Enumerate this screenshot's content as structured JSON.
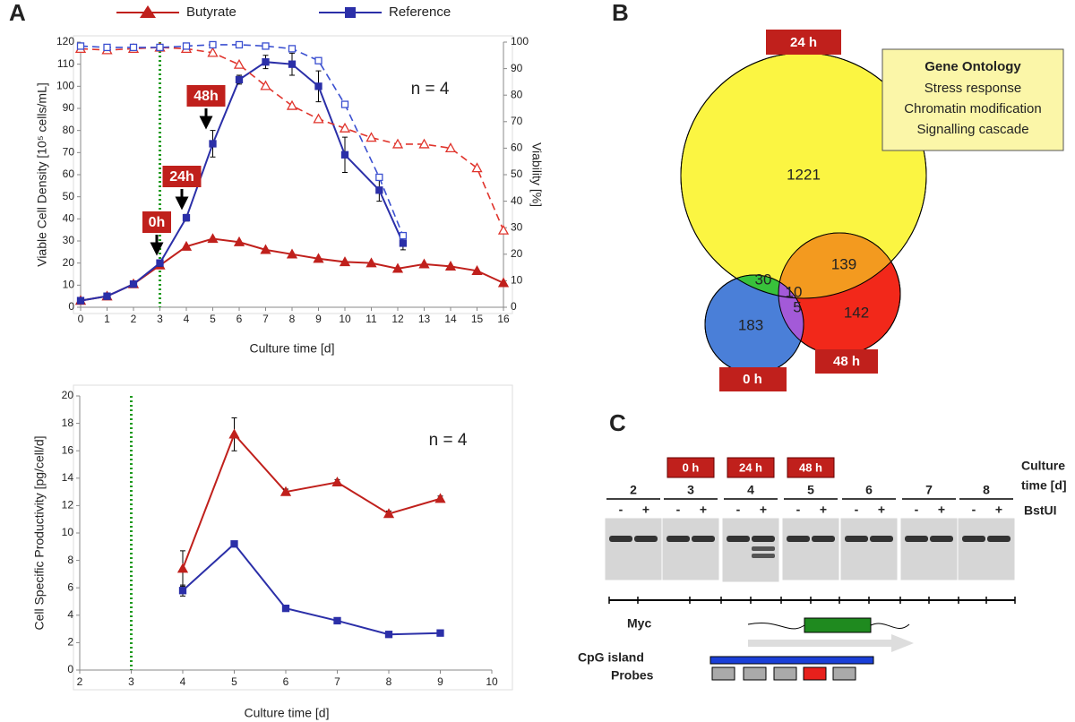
{
  "panels": [
    "A",
    "B",
    "C"
  ],
  "chart_data": [
    {
      "type": "line",
      "xlabel": "Culture time [d]",
      "ylabel": "Viable Cell Density [10⁵ cells/mL]",
      "y2label": "Viability [%]",
      "xlim": [
        0,
        16
      ],
      "ylim": [
        0,
        120
      ],
      "y2lim": [
        0,
        100
      ],
      "xticks": [
        0,
        1,
        2,
        3,
        4,
        5,
        6,
        7,
        8,
        9,
        10,
        11,
        12,
        13,
        14,
        15,
        16
      ],
      "yticks": [
        0,
        10,
        20,
        30,
        40,
        50,
        60,
        70,
        80,
        90,
        100,
        110,
        120
      ],
      "y2ticks": [
        0,
        10,
        20,
        30,
        40,
        50,
        60,
        70,
        80,
        90,
        100
      ],
      "vline": 3,
      "annotations": [
        "0h",
        "24h",
        "48h",
        "n = 4"
      ],
      "series": [
        {
          "name": "Butyrate",
          "color": "#c0201c",
          "marker": "triangle",
          "filled": true,
          "dashed": false,
          "axis": "y",
          "x": [
            0,
            1,
            2,
            3,
            4,
            5,
            6,
            7,
            8,
            9,
            10,
            11,
            12,
            13,
            14,
            15,
            16
          ],
          "values": [
            3,
            5,
            10.5,
            19,
            27.5,
            31,
            29.5,
            26,
            24,
            22,
            20.5,
            20,
            17.5,
            19.5,
            18.5,
            16.5,
            11
          ]
        },
        {
          "name": "Reference",
          "color": "#2b2fa8",
          "marker": "square",
          "filled": true,
          "dashed": false,
          "axis": "y",
          "x": [
            0,
            1,
            2,
            3,
            4,
            5,
            6,
            7,
            8,
            9,
            10,
            11.3,
            12.2
          ],
          "values": [
            3,
            5,
            10.5,
            20,
            40.5,
            74,
            103,
            111,
            110,
            100,
            69,
            53,
            29
          ],
          "errors": [
            0.5,
            0.5,
            0.8,
            1.5,
            1.5,
            6,
            2,
            3,
            5,
            7,
            8,
            5,
            3
          ]
        },
        {
          "name": "Butyrate",
          "color": "#e0342c",
          "marker": "triangle",
          "filled": false,
          "dashed": true,
          "axis": "y2",
          "x": [
            0,
            1,
            2,
            3,
            4,
            5,
            6,
            7,
            8,
            9,
            10,
            11,
            12,
            13,
            14,
            15,
            16
          ],
          "values": [
            97.5,
            97,
            97.5,
            98,
            97.5,
            96,
            91.5,
            83.5,
            76,
            71,
            67.5,
            64,
            61.5,
            61.5,
            60,
            52.5,
            29
          ]
        },
        {
          "name": "Reference",
          "color": "#3a4fd0",
          "marker": "square",
          "filled": false,
          "dashed": true,
          "axis": "y2",
          "x": [
            0,
            1,
            2,
            3,
            4,
            5,
            6,
            7,
            8,
            9,
            10,
            11.3,
            12.2
          ],
          "values": [
            98.5,
            98,
            98,
            98,
            98.5,
            99,
            99,
            98.5,
            97.5,
            93,
            76.5,
            49,
            27
          ]
        }
      ]
    },
    {
      "type": "line",
      "xlabel": "Culture time [d]",
      "ylabel": "Cell Specific Productivity [pg/cell/d]",
      "xlim": [
        2,
        10
      ],
      "ylim": [
        0,
        20
      ],
      "xticks": [
        2,
        3,
        4,
        5,
        6,
        7,
        8,
        9,
        10
      ],
      "yticks": [
        0,
        2,
        4,
        6,
        8,
        10,
        12,
        14,
        16,
        18,
        20
      ],
      "vline": 3,
      "annotations": [
        "n = 4"
      ],
      "series": [
        {
          "name": "Butyrate",
          "color": "#c0201c",
          "marker": "triangle",
          "filled": true,
          "dashed": false,
          "axis": "y",
          "x": [
            4,
            5,
            6,
            7,
            8,
            9
          ],
          "values": [
            7.4,
            17.2,
            13,
            13.7,
            11.4,
            12.5
          ],
          "errors": [
            1.3,
            1.2,
            0.2,
            0.2,
            0.2,
            0.2
          ]
        },
        {
          "name": "Reference",
          "color": "#2b2fa8",
          "marker": "square",
          "filled": true,
          "dashed": false,
          "axis": "y",
          "x": [
            4,
            5,
            6,
            7,
            8,
            9
          ],
          "values": [
            5.8,
            9.2,
            4.5,
            3.6,
            2.6,
            2.7
          ],
          "errors": [
            0.4,
            0.2,
            0.1,
            0.1,
            0.1,
            0.1
          ]
        }
      ]
    }
  ],
  "venn": {
    "sets": [
      "24 h",
      "0 h",
      "48 h"
    ],
    "counts": {
      "only_24h": 1221,
      "24h_0h": 30,
      "all": 10,
      "24h_48h": 139,
      "0h_48h": 5,
      "only_0h": 183,
      "only_48h": 142
    },
    "ontology": {
      "title": "Gene Ontology",
      "terms": [
        "Stress response",
        "Chromatin modification",
        "Signalling cascade"
      ]
    }
  },
  "gel": {
    "header": [
      "Culture",
      "time [d]"
    ],
    "times": [
      "0 h",
      "24 h",
      "48 h"
    ],
    "lanes": [
      2,
      3,
      4,
      5,
      6,
      7,
      8
    ],
    "minus": "-",
    "plus": "+",
    "enzyme": "BstUI",
    "gene": "Myc",
    "island": "CpG island",
    "probes": "Probes"
  }
}
